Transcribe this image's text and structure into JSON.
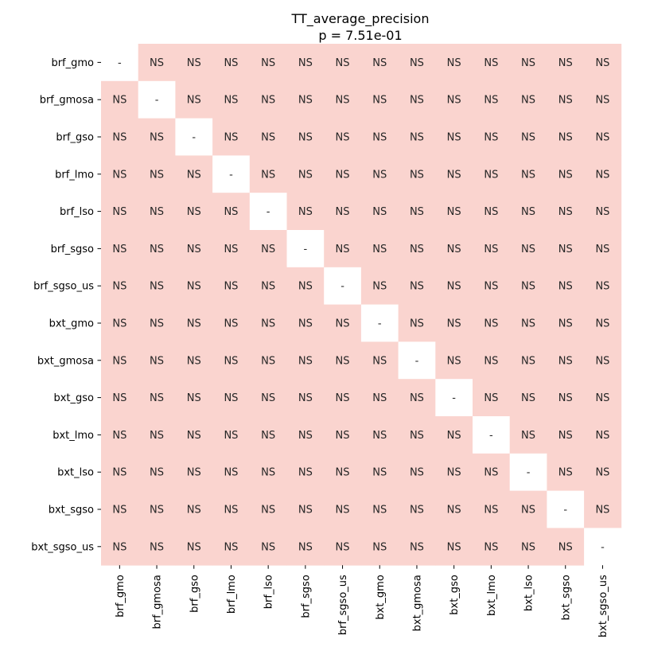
{
  "chart_data": {
    "type": "heatmap",
    "title": "TT_average_precision",
    "subtitle": "p = 7.51e-01",
    "row_labels": [
      "brf_gmo",
      "brf_gmosa",
      "brf_gso",
      "brf_lmo",
      "brf_lso",
      "brf_sgso",
      "brf_sgso_us",
      "bxt_gmo",
      "bxt_gmosa",
      "bxt_gso",
      "bxt_lmo",
      "bxt_lso",
      "bxt_sgso",
      "bxt_sgso_us"
    ],
    "col_labels": [
      "brf_gmo",
      "brf_gmosa",
      "brf_gso",
      "brf_lmo",
      "brf_lso",
      "brf_sgso",
      "brf_sgso_us",
      "bxt_gmo",
      "bxt_gmosa",
      "bxt_gso",
      "bxt_lmo",
      "bxt_lso",
      "bxt_sgso",
      "bxt_sgso_us"
    ],
    "cell_label_offdiag": "NS",
    "cell_label_diag": "-",
    "ns_color": "#fad4cf",
    "diag_color": "#ffffff",
    "grid": false,
    "legend": "none"
  }
}
